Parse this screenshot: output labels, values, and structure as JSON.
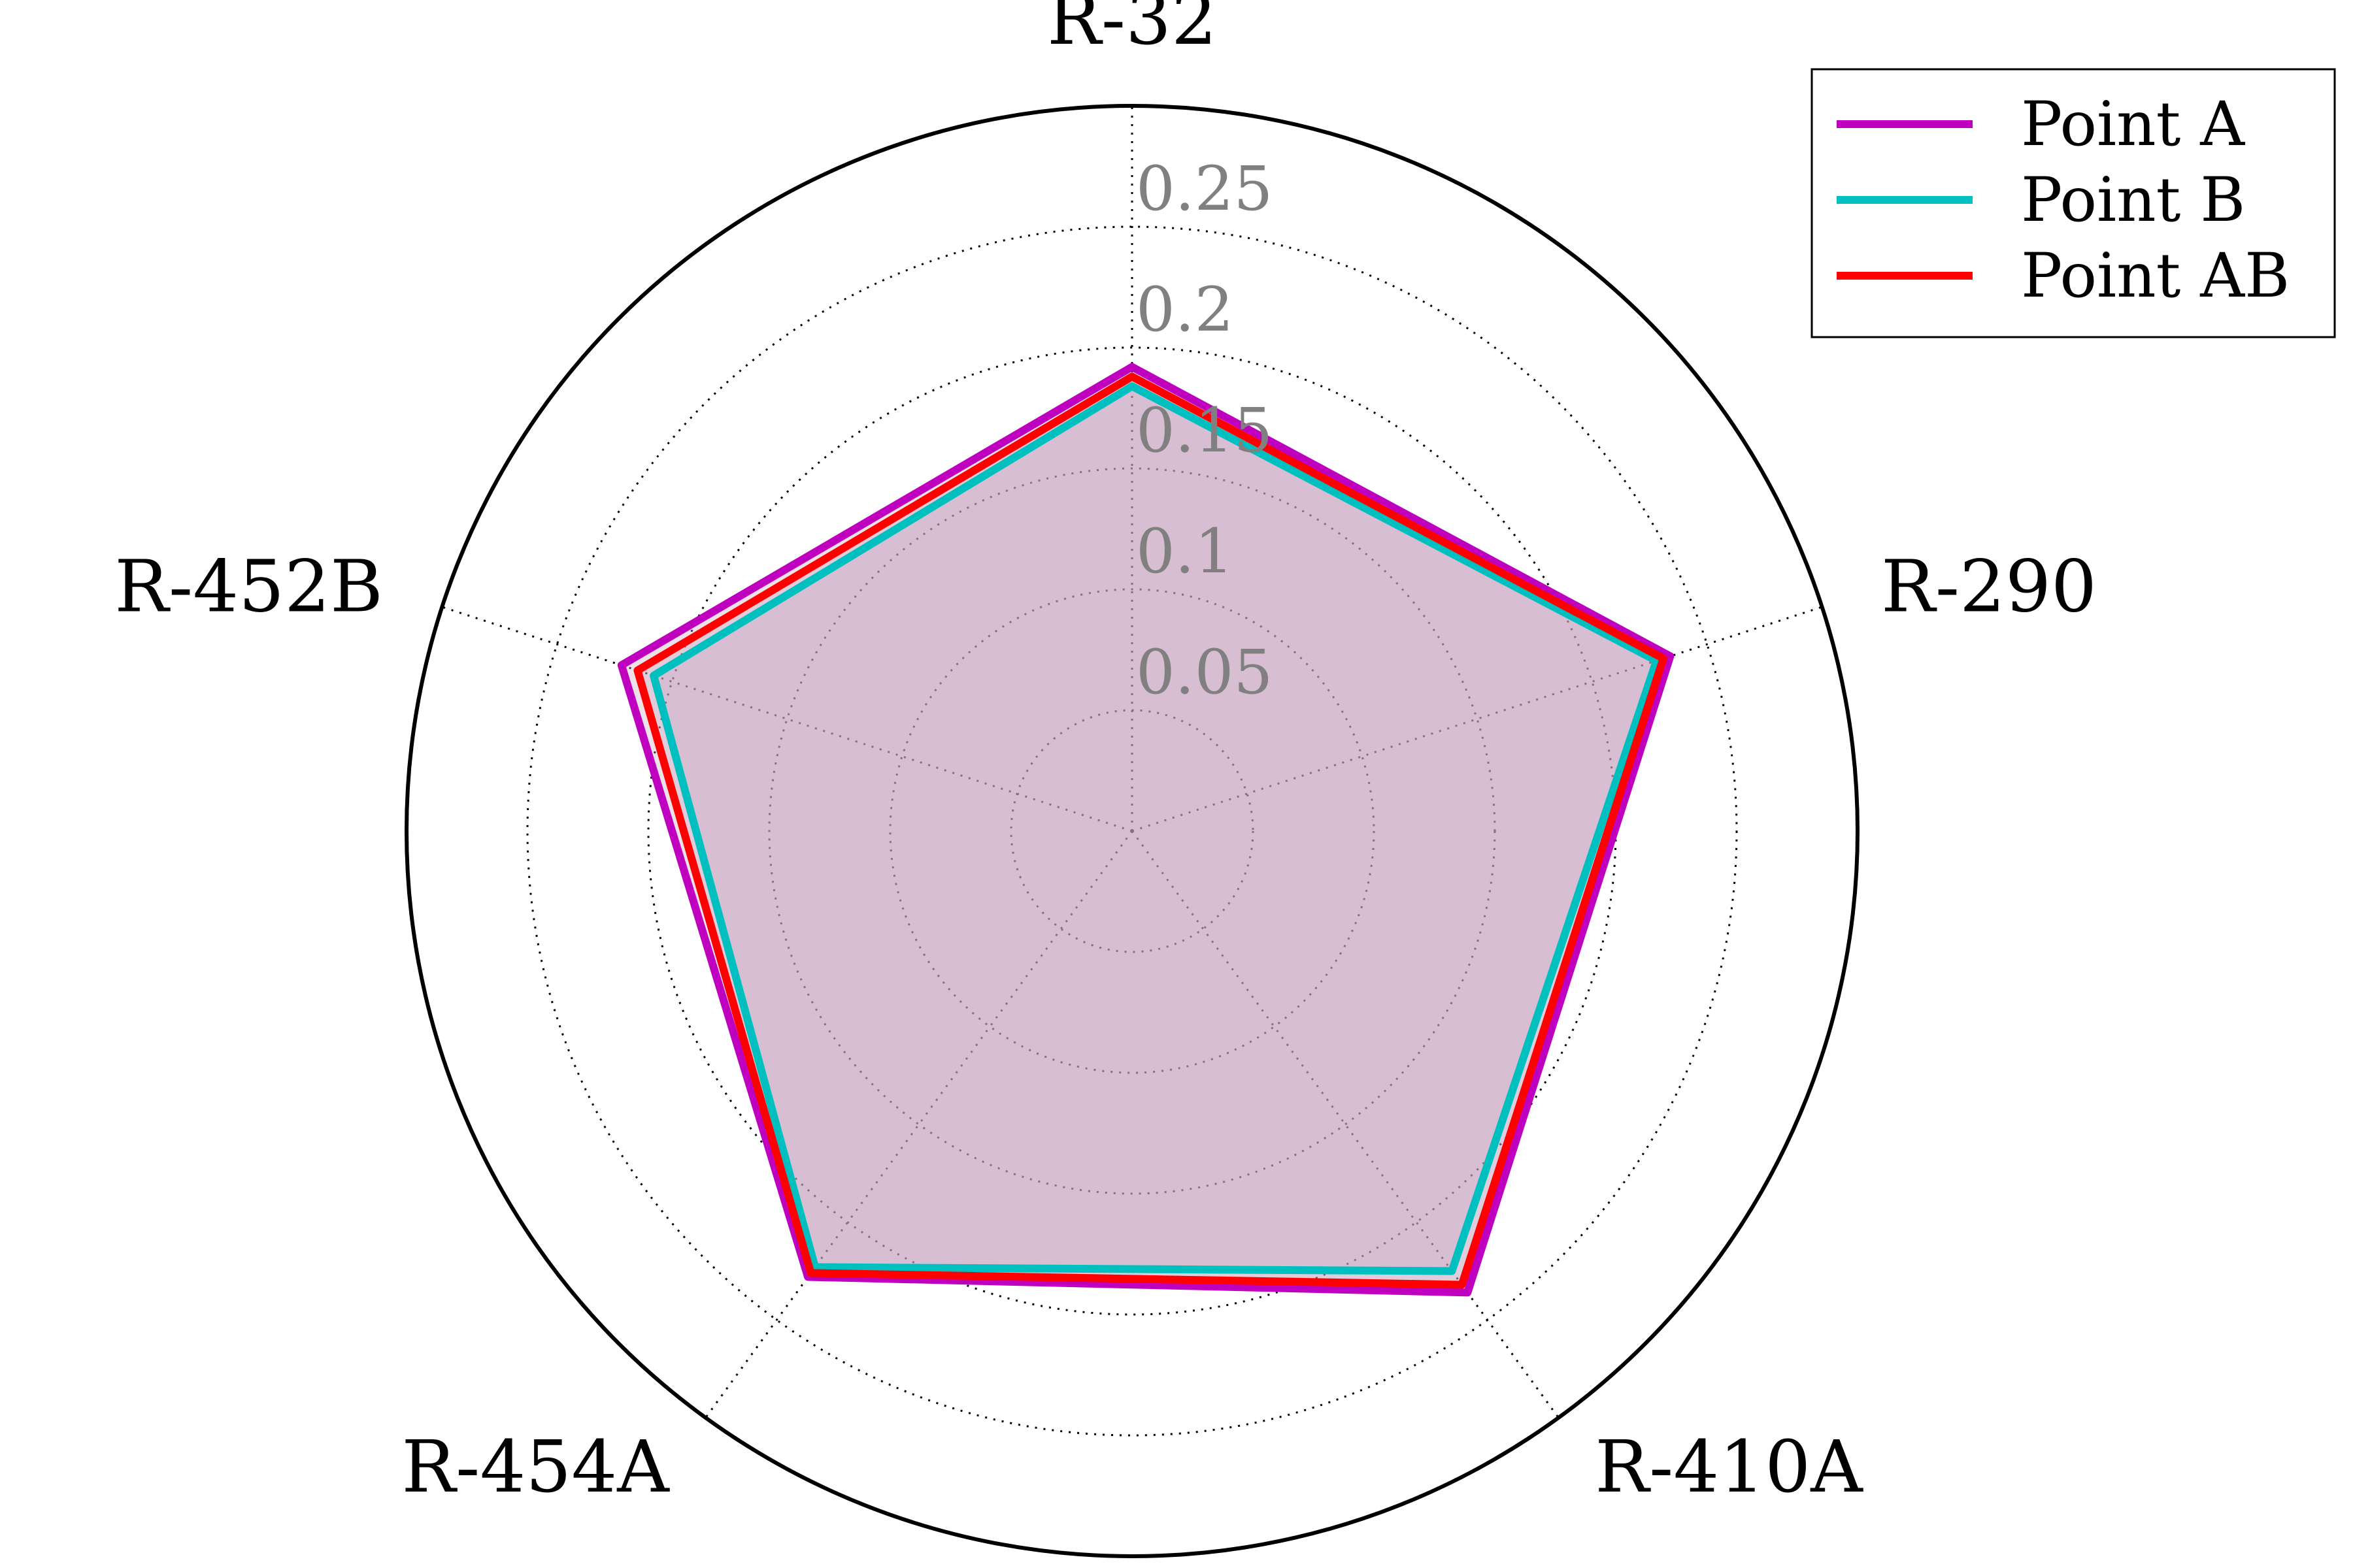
{
  "chart_data": {
    "type": "radar",
    "title": "",
    "axes": [
      "R-32",
      "R-290",
      "R-410A",
      "R-454A",
      "R-452B"
    ],
    "rlim": [
      0,
      0.3
    ],
    "r_ticks": [
      0.05,
      0.1,
      0.15,
      0.2,
      0.25
    ],
    "r_tick_labels": [
      "0.05",
      "0.1",
      "0.15",
      "0.2",
      "0.25"
    ],
    "grid": true,
    "legend_position": "top-right",
    "series": [
      {
        "name": "Point A",
        "values": [
          0.192,
          0.234,
          0.236,
          0.228,
          0.222
        ],
        "color": "#bf00bf"
      },
      {
        "name": "Point B",
        "values": [
          0.184,
          0.228,
          0.225,
          0.223,
          0.208
        ],
        "color": "#00bfbf"
      },
      {
        "name": "Point AB",
        "values": [
          0.188,
          0.231,
          0.232,
          0.226,
          0.215
        ],
        "color": "#ff0000"
      }
    ],
    "fill_color": "#c8a2bd",
    "tick_color": "#808080"
  }
}
